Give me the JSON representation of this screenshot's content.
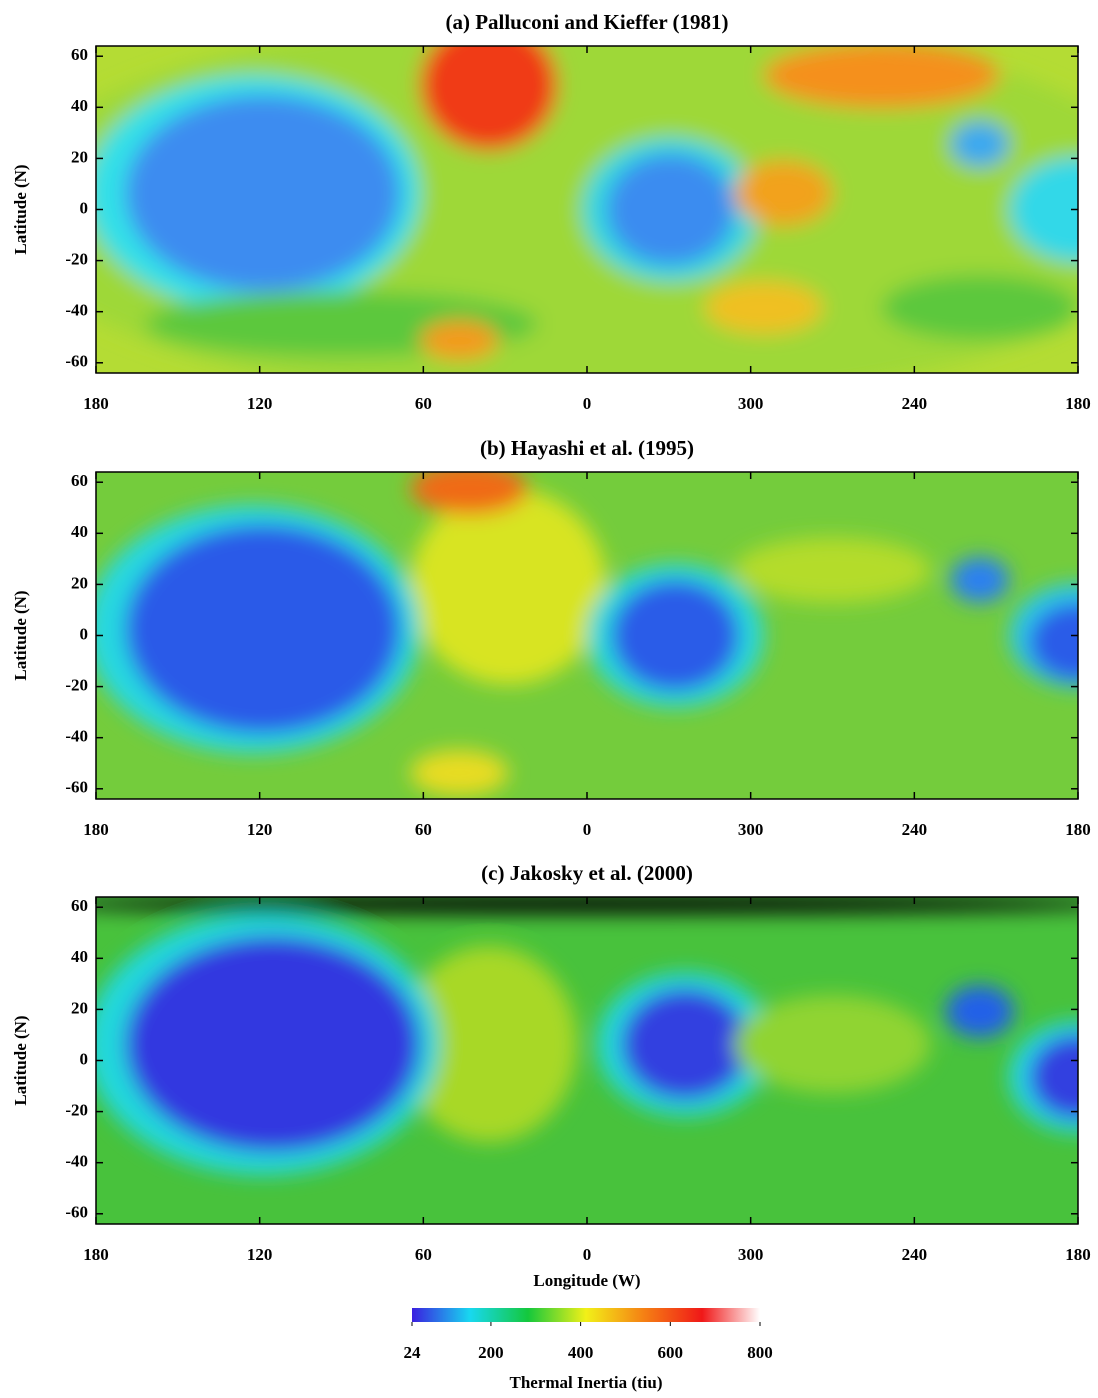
{
  "chart_data": [
    {
      "type": "heatmap",
      "title": "(a) Palluconi and Kieffer (1981)",
      "ylabel": "Latitude (N)",
      "xlim": [
        180,
        -180
      ],
      "xticks": [
        180,
        120,
        60,
        0,
        {
          "value": -60,
          "label": "300"
        },
        {
          "value": -120,
          "label": "240"
        },
        {
          "value": -180,
          "label": "180"
        }
      ],
      "ylim": [
        -64,
        64
      ],
      "yticks": [
        60,
        40,
        20,
        0,
        -20,
        -40,
        -60
      ]
    },
    {
      "type": "heatmap",
      "title": "(b) Hayashi et al. (1995)",
      "ylabel": "Latitude (N)",
      "xlim": [
        180,
        -180
      ],
      "xticks": [
        180,
        120,
        60,
        0,
        {
          "value": -60,
          "label": "300"
        },
        {
          "value": -120,
          "label": "240"
        },
        {
          "value": -180,
          "label": "180"
        }
      ],
      "ylim": [
        -64,
        64
      ],
      "yticks": [
        60,
        40,
        20,
        0,
        -20,
        -40,
        -60
      ]
    },
    {
      "type": "heatmap",
      "title": "(c) Jakosky et al. (2000)",
      "ylabel": "Latitude (N)",
      "xlabel": "Longitude (W)",
      "xlim": [
        180,
        -180
      ],
      "xticks": [
        180,
        120,
        60,
        0,
        {
          "value": -60,
          "label": "300"
        },
        {
          "value": -120,
          "label": "240"
        },
        {
          "value": -180,
          "label": "180"
        }
      ],
      "ylim": [
        -64,
        64
      ],
      "yticks": [
        60,
        40,
        20,
        0,
        -20,
        -40,
        -60
      ]
    },
    {
      "type": "colorbar",
      "title": "Thermal Inertia (tiu)",
      "lim": [
        24,
        800
      ],
      "ticks": [
        24,
        200,
        400,
        600,
        800
      ],
      "colors": [
        "#3a1fe0",
        "#18d8f0",
        "#14c83c",
        "#f2f018",
        "#f58014",
        "#f01818",
        "#ffffff"
      ]
    }
  ]
}
